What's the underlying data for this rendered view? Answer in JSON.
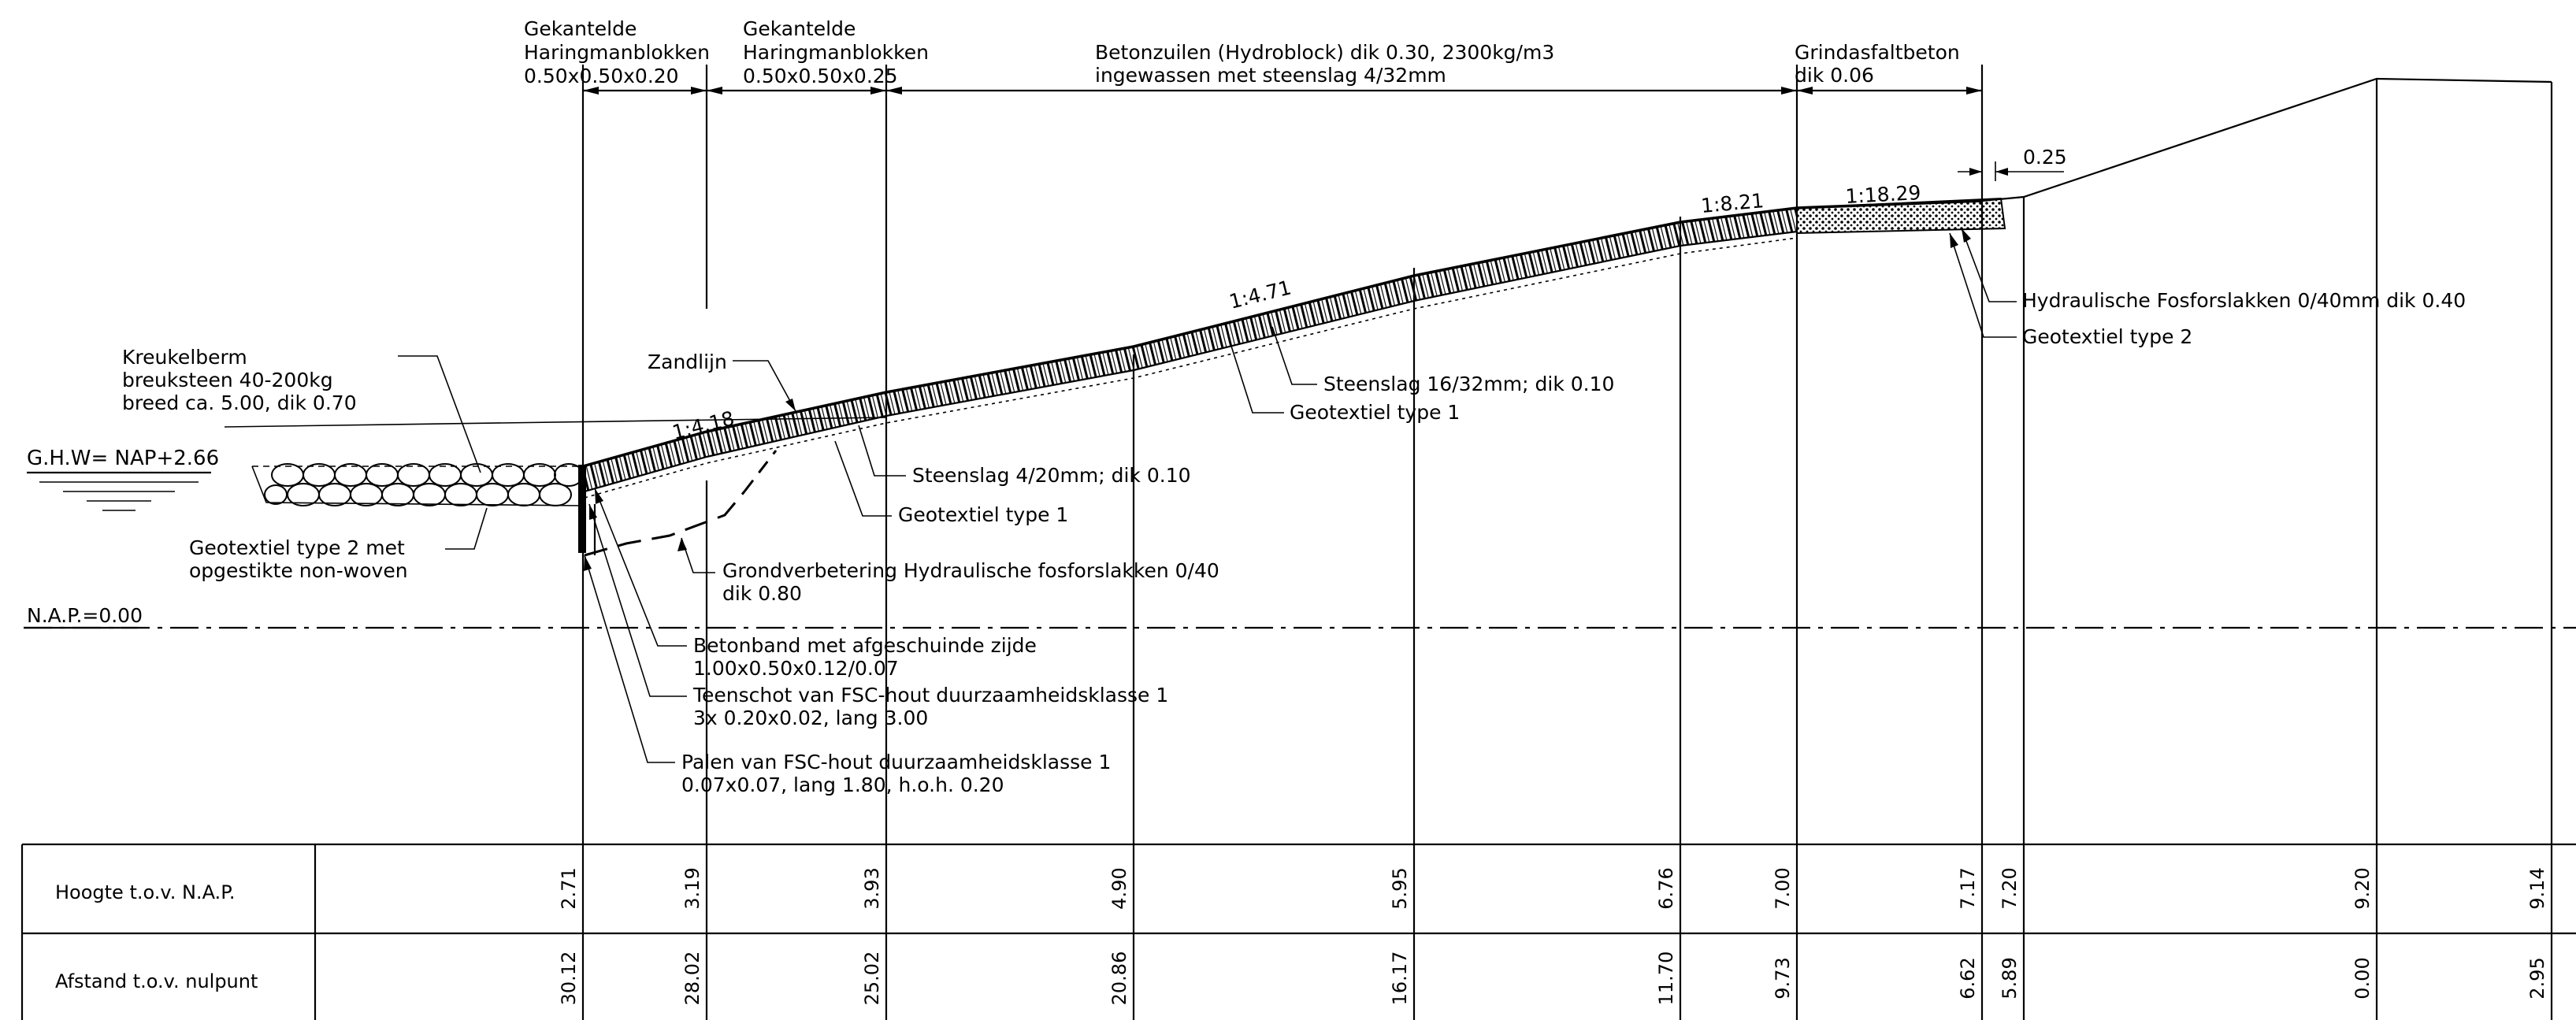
{
  "labels": {
    "top_haring_1": [
      "Gekantelde",
      "Haringmanblokken",
      "0.50x0.50x0.20"
    ],
    "top_haring_2": [
      "Gekantelde",
      "Haringmanblokken",
      "0.50x0.50x0.25"
    ],
    "top_betonzuilen": [
      "Betonzuilen (Hydroblock) dik 0.30, 2300kg/m3",
      "ingewassen met steenslag 4/32mm"
    ],
    "top_grindasfalt": [
      "Grindasfaltbeton",
      "dik 0.06"
    ],
    "dim_025": "0.25",
    "kreukelberm": [
      "Kreukelberm",
      "breuksteen 40-200kg",
      "breed ca. 5.00, dik 0.70"
    ],
    "ghw": "G.H.W= NAP+2.66",
    "nap": "N.A.P.=0.00",
    "zandlijn": "Zandlijn",
    "geotextiel_2_met": [
      "Geotextiel type 2 met",
      "opgestikte non-woven"
    ],
    "steenslag_4_20": "Steenslag 4/20mm; dik 0.10",
    "geotextiel_1_a": "Geotextiel type 1",
    "steenslag_16_32": "Steenslag 16/32mm; dik 0.10",
    "geotextiel_1_b": "Geotextiel type 1",
    "grondverbetering": [
      "Grondverbetering Hydraulische fosforslakken 0/40",
      "dik 0.80"
    ],
    "betonband": [
      "Betonband met afgeschuinde zijde",
      "1.00x0.50x0.12/0.07"
    ],
    "teenschot": [
      "Teenschot van FSC-hout duurzaamheidsklasse 1",
      "3x 0.20x0.02, lang 3.00"
    ],
    "palen": [
      "Palen van FSC-hout duurzaamheidsklasse 1",
      "0.07x0.07, lang 1.80, h.o.h. 0.20"
    ],
    "hydraulische": "Hydraulische Fosforslakken 0/40mm dik 0.40",
    "geotextiel_2": "Geotextiel type 2"
  },
  "slopes": [
    "1:4.18",
    "1:4.71",
    "1:8.21",
    "1:18.29"
  ],
  "table": {
    "row1_label": "Hoogte t.o.v. N.A.P.",
    "row2_label": "Afstand t.o.v. nulpunt",
    "hoogte": [
      "2.71",
      "3.19",
      "3.93",
      "4.90",
      "5.95",
      "6.76",
      "7.00",
      "7.17",
      "7.20",
      "9.20",
      "9.14"
    ],
    "afstand": [
      "30.12",
      "28.02",
      "25.02",
      "20.86",
      "16.17",
      "11.70",
      "9.73",
      "6.62",
      "5.89",
      "0.00",
      "2.95"
    ]
  }
}
